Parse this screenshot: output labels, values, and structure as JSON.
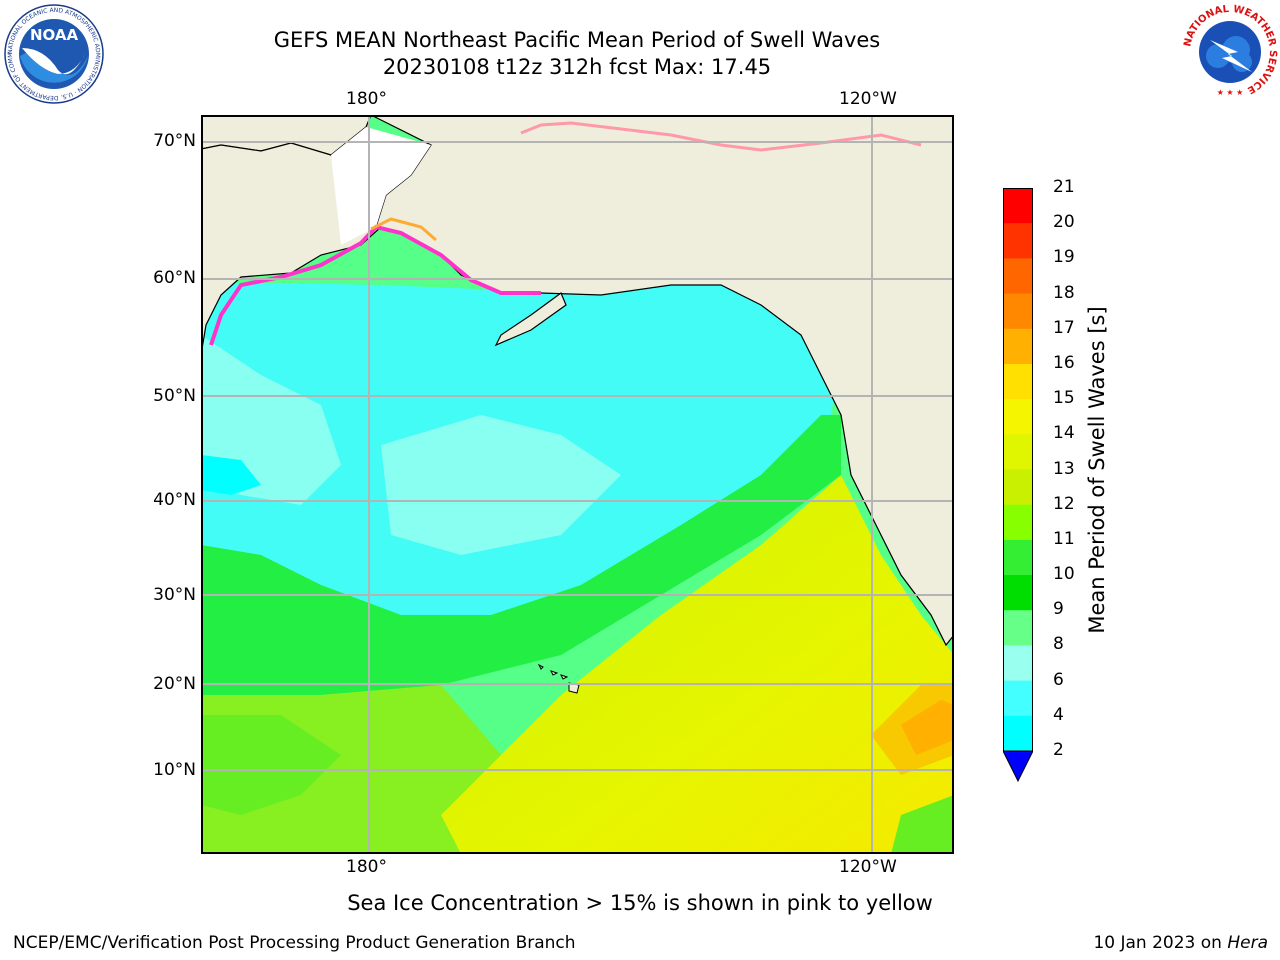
{
  "header": {
    "title_line1": "GEFS MEAN Northeast Pacific Mean Period of Swell Waves",
    "title_line2": "20230108 t12z 312h fcst   Max: 17.45"
  },
  "logos": {
    "left": {
      "name": "noaa-logo",
      "text": "NOAA",
      "ring_text": "NATIONAL OCEANIC AND ATMOSPHERIC ADMINISTRATION · U.S. DEPARTMENT OF COMMERCE"
    },
    "right": {
      "name": "nws-logo",
      "ring_text": "NATIONAL WEATHER SERVICE"
    }
  },
  "map": {
    "top_lon_labels": [
      "180°",
      "120°W"
    ],
    "bottom_lon_labels": [
      "180°",
      "120°W"
    ],
    "lat_labels": [
      "70°N",
      "60°N",
      "50°N",
      "40°N",
      "30°N",
      "20°N",
      "10°N"
    ],
    "colors": {
      "land": "#efeddc",
      "grid": "#b4b4b4",
      "coast": "#000000",
      "ice_pink": "#ff33cc",
      "ice_orange": "#ffaa33"
    }
  },
  "colorbar": {
    "title": "Mean Period of Swell Waves [s]",
    "ticks": [
      "21",
      "20",
      "19",
      "18",
      "17",
      "16",
      "15",
      "14",
      "13",
      "12",
      "11",
      "10",
      "9",
      "8",
      "6",
      "4",
      "2"
    ],
    "colors": [
      "#ff0000",
      "#ff3300",
      "#ff6600",
      "#ff8800",
      "#ffb000",
      "#ffe000",
      "#f5f500",
      "#e0f500",
      "#c8f000",
      "#88ff00",
      "#33ee33",
      "#00dd00",
      "#66ff88",
      "#99ffee",
      "#44ffff",
      "#00ffff",
      "#0099ff",
      "#0055ff",
      "#0000ff"
    ]
  },
  "annotation": "Sea Ice Concentration > 15% is shown in pink to yellow",
  "footer": {
    "left": "NCEP/EMC/Verification Post Processing Product Generation Branch",
    "right_date": "10 Jan 2023 on ",
    "right_host": "Hera"
  }
}
